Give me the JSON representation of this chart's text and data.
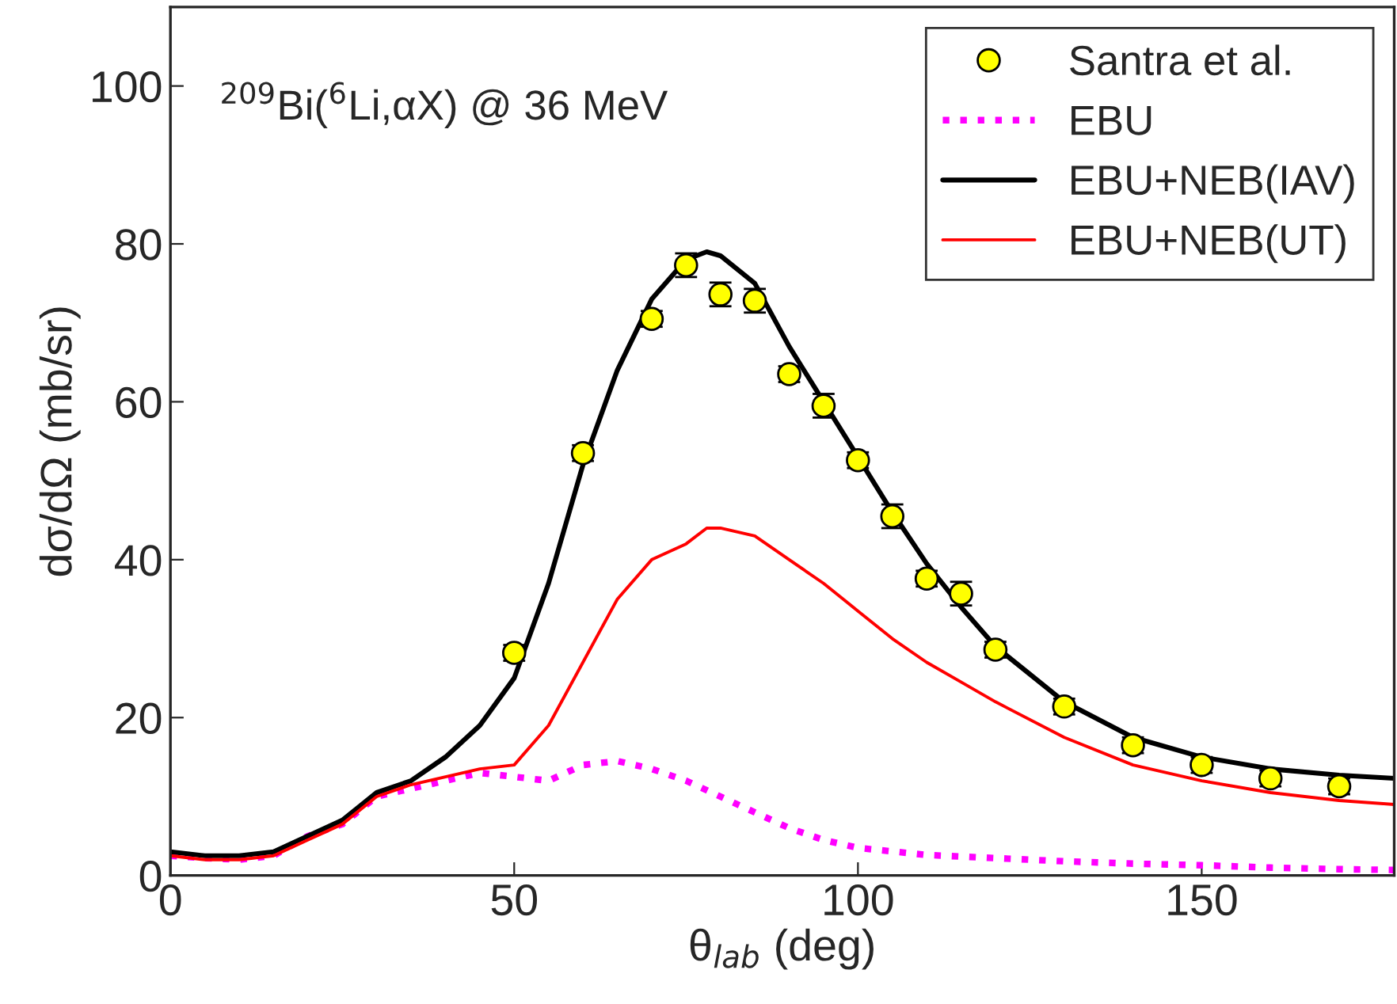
{
  "chart_data": {
    "type": "line",
    "xlabel": "θ$_{lab}$ (deg)",
    "ylabel": "dσ/dΩ (mb/sr)",
    "annotations": [
      "$^{209}$Bi($^{6}$Li,αX) @ 36 MeV"
    ],
    "xlim": [
      0,
      178
    ],
    "ylim": [
      0,
      110
    ],
    "xticks": [
      0,
      50,
      100,
      150
    ],
    "yticks": [
      0,
      20,
      40,
      60,
      80,
      100
    ],
    "grid": false,
    "legend": "top right",
    "series": [
      {
        "name": "Santra et al.",
        "type": "scatter",
        "marker": "circle",
        "color": "#ffff00",
        "x": [
          50,
          60,
          70,
          75,
          80,
          85,
          90,
          95,
          100,
          105,
          110,
          115,
          120,
          130,
          140,
          150,
          160,
          170
        ],
        "values": [
          28.2,
          53.5,
          70.5,
          77.3,
          73.6,
          72.8,
          63.5,
          59.5,
          52.6,
          45.5,
          37.6,
          35.7,
          28.6,
          21.4,
          16.5,
          14,
          12.3,
          11.3
        ],
        "errors": [
          1,
          1,
          1,
          1.5,
          1.5,
          1.5,
          1,
          1.5,
          1,
          1.5,
          1,
          1.5,
          1,
          1,
          1,
          1,
          1,
          1
        ]
      },
      {
        "name": "EBU",
        "line_style": "dotted",
        "color": "#ff00ff",
        "x": [
          0,
          5,
          10,
          15,
          20,
          25,
          30,
          35,
          40,
          45,
          50,
          55,
          60,
          65,
          70,
          75,
          80,
          85,
          90,
          95,
          100,
          110,
          120,
          130,
          140,
          150,
          160,
          170,
          178
        ],
        "values": [
          2.5,
          2.2,
          2,
          2.5,
          5,
          6.5,
          10,
          11,
          12,
          13,
          12.5,
          12,
          14,
          14.5,
          13.5,
          12,
          10,
          8,
          6,
          4.5,
          3.5,
          2.6,
          2.2,
          1.8,
          1.5,
          1.3,
          1,
          0.8,
          0.7
        ]
      },
      {
        "name": "EBU+NEB(IAV)",
        "line_style": "solid",
        "color": "#000000",
        "x": [
          0,
          5,
          10,
          15,
          20,
          25,
          30,
          35,
          40,
          45,
          50,
          55,
          60,
          65,
          70,
          75,
          78,
          80,
          85,
          90,
          95,
          100,
          105,
          110,
          115,
          120,
          130,
          140,
          150,
          160,
          170,
          178
        ],
        "values": [
          3,
          2.5,
          2.5,
          3,
          5,
          7,
          10.5,
          12,
          15,
          19,
          25,
          37,
          52,
          64,
          73,
          78,
          79,
          78.5,
          75,
          67,
          60,
          53,
          46,
          39.5,
          34,
          29,
          22,
          17.5,
          15,
          13.5,
          12.7,
          12.3
        ]
      },
      {
        "name": "EBU+NEB(UT)",
        "line_style": "solid",
        "color": "#ff0000",
        "x": [
          0,
          5,
          10,
          15,
          20,
          25,
          30,
          35,
          40,
          45,
          50,
          55,
          60,
          65,
          70,
          75,
          78,
          80,
          85,
          90,
          95,
          100,
          105,
          110,
          115,
          120,
          130,
          140,
          150,
          160,
          170,
          178
        ],
        "values": [
          2.5,
          2,
          2,
          2.5,
          4.5,
          6.5,
          10,
          11.5,
          12.5,
          13.5,
          14,
          19,
          27,
          35,
          40,
          42,
          44,
          44,
          43,
          40,
          37,
          33.5,
          30,
          27,
          24.5,
          22,
          17.5,
          14,
          12,
          10.5,
          9.5,
          9
        ]
      }
    ]
  }
}
